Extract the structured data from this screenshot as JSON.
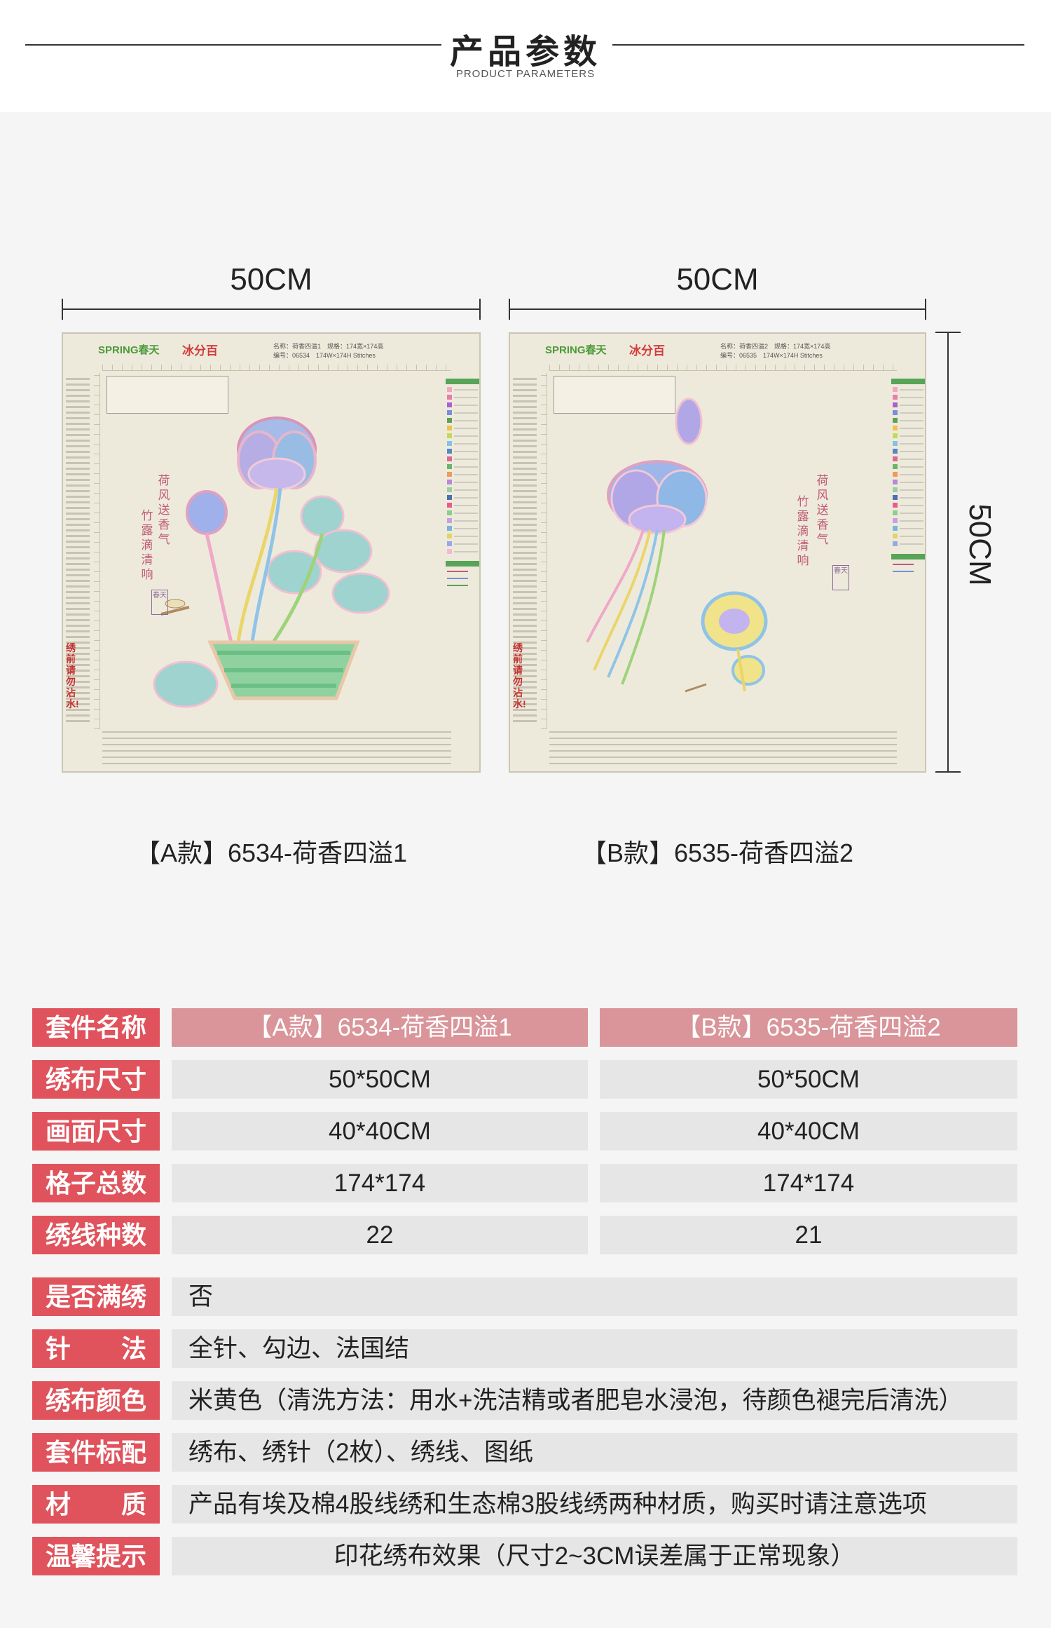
{
  "header": {
    "title": "产品参数",
    "subtitle": "PRODUCT PARAMETERS"
  },
  "dimensions": {
    "a_width": "50CM",
    "b_width": "50CM",
    "b_height": "50CM"
  },
  "chart_a": {
    "brand": "SPRING春天",
    "brand2": "冰分百",
    "name": "名称：荷香四溢1",
    "code": "编号：06534",
    "spec": "规格：174宽×174高",
    "stitches": "174W×174H Stitches",
    "poem1": "荷风送香气",
    "poem2": "竹露滴清响",
    "seal": "春天",
    "warning": "绣前请勿沾水!"
  },
  "chart_b": {
    "brand": "SPRING春天",
    "brand2": "冰分百",
    "name": "名称：荷香四溢2",
    "code": "编号：06535",
    "spec": "规格：174宽×174高",
    "stitches": "174W×174H Stitches",
    "poem1": "荷风送香气",
    "poem2": "竹露滴清响",
    "seal": "春天",
    "warning": "绣前请勿沾水!"
  },
  "captions": {
    "a": "【A款】6534-荷香四溢1",
    "b": "【B款】6535-荷香四溢2"
  },
  "table": {
    "rows_two_col": [
      {
        "label": "套件名称",
        "a": "【A款】6534-荷香四溢1",
        "b": "【B款】6535-荷香四溢2"
      },
      {
        "label": "绣布尺寸",
        "a": "50*50CM",
        "b": "50*50CM"
      },
      {
        "label": "画面尺寸",
        "a": "40*40CM",
        "b": "40*40CM"
      },
      {
        "label": "格子总数",
        "a": "174*174",
        "b": "174*174"
      },
      {
        "label": "绣线种数",
        "a": "22",
        "b": "21"
      }
    ],
    "rows_one_col": [
      {
        "label": "是否满绣",
        "value": "否"
      },
      {
        "label": "针　　法",
        "value": "全针、勾边、法国结"
      },
      {
        "label": "绣布颜色",
        "value": "米黄色（清洗方法：用水+洗洁精或者肥皂水浸泡，待颜色褪完后清洗）"
      },
      {
        "label": "套件标配",
        "value": "绣布、绣针（2枚）、绣线、图纸"
      },
      {
        "label": "材　　质",
        "value": "产品有埃及棉4股线绣和生态棉3股线绣两种材质，购买时请注意选项"
      },
      {
        "label": "温馨提示",
        "value": "印花绣布效果（尺寸2~3CM误差属于正常现象）"
      }
    ]
  },
  "colors": {
    "label_bg": "#e0535c",
    "head_bg": "#d9959a",
    "cell_bg": "#e6e6e6",
    "cloth": "#eeeadb"
  }
}
